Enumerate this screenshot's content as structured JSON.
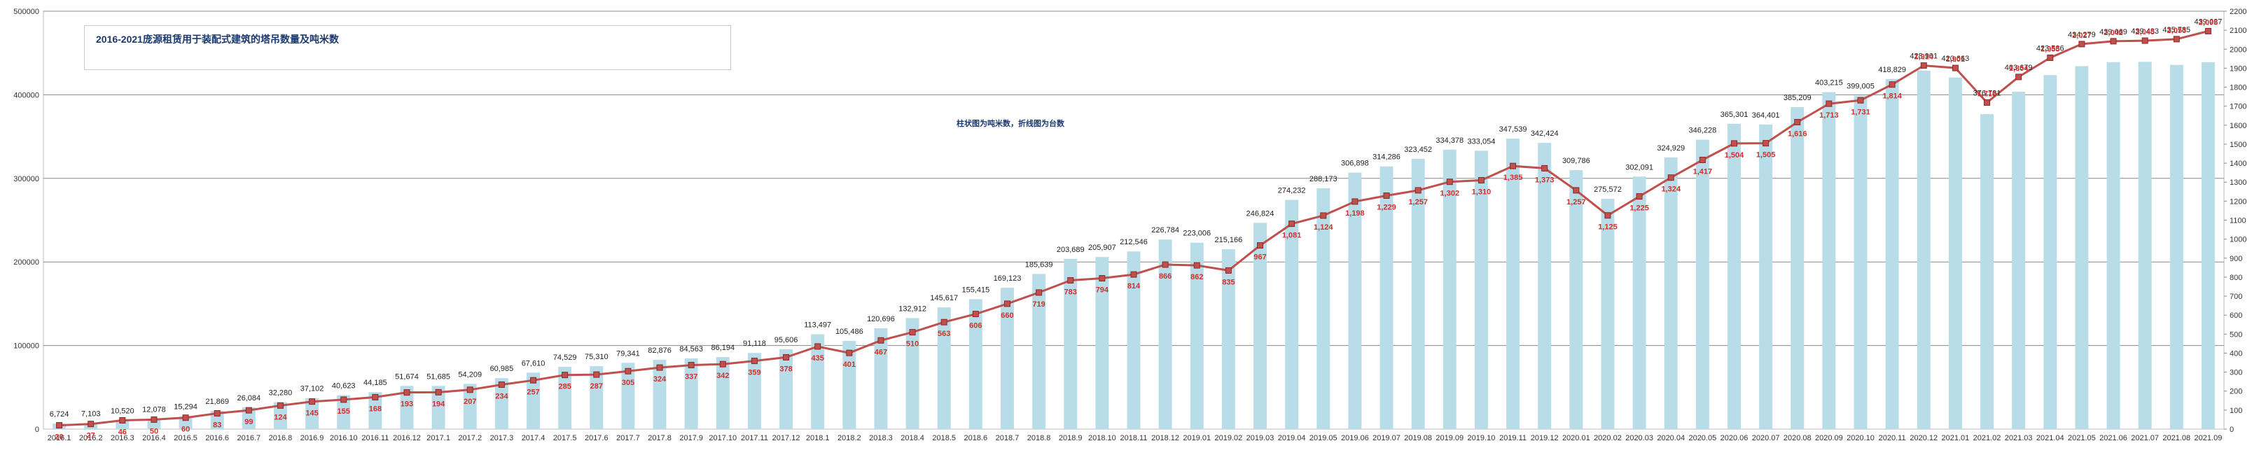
{
  "chart_data": {
    "type": "bar+line",
    "title": "2016-2021庞源租赁用于装配式建筑的塔吊数量及吨米数",
    "note": "柱状图为吨米数，折线图为台数",
    "categories": [
      "2016.1",
      "2016.2",
      "2016.3",
      "2016.4",
      "2016.5",
      "2016.6",
      "2016.7",
      "2016.8",
      "2016.9",
      "2016.10",
      "2016.11",
      "2016.12",
      "2017.1",
      "2017.2",
      "2017.3",
      "2017.4",
      "2017.5",
      "2017.6",
      "2017.7",
      "2017.8",
      "2017.9",
      "2017.10",
      "2017.11",
      "2017.12",
      "2018.1",
      "2018.2",
      "2018.3",
      "2018.4",
      "2018.5",
      "2018.6",
      "2018.7",
      "2018.8",
      "2018.9",
      "2018.10",
      "2018.11",
      "2018.12",
      "2019.01",
      "2019.02",
      "2019.03",
      "2019.04",
      "2019.05",
      "2019.06",
      "2019.07",
      "2019.08",
      "2019.09",
      "2019.10",
      "2019.11",
      "2019.12",
      "2020.01",
      "2020.02",
      "2020.03",
      "2020.04",
      "2020.05",
      "2020.06",
      "2020.07",
      "2020.08",
      "2020.09",
      "2020.10",
      "2020.11",
      "2020.12",
      "2021.01",
      "2021.02",
      "2021.03",
      "2021.04",
      "2021.05",
      "2021.06",
      "2021.07",
      "2021.08",
      "2021.09"
    ],
    "series": [
      {
        "type": "bar",
        "axis": "left",
        "values": [
          6724,
          7103,
          10520,
          12078,
          15294,
          21869,
          26084,
          32280,
          37102,
          40623,
          44185,
          51674,
          51685,
          54209,
          60985,
          67610,
          74529,
          75310,
          79341,
          82876,
          84563,
          86194,
          91118,
          95606,
          113497,
          105486,
          120696,
          132912,
          145617,
          155415,
          169123,
          185639,
          203689,
          205907,
          212546,
          226784,
          223006,
          215166,
          246824,
          274232,
          288173,
          306898,
          314286,
          323452,
          334378,
          333054,
          347539,
          342424,
          309786,
          275572,
          302091,
          324929,
          346228,
          365301,
          364401,
          385209,
          403215,
          399005,
          418829,
          428901,
          420663,
          376781,
          403679,
          423536,
          434279,
          439069,
          439433,
          435785,
          439027
        ],
        "labels": [
          "6,724",
          "7,103",
          "10,520",
          "12,078",
          "15,294",
          "21,869",
          "26,084",
          "32,280",
          "37,102",
          "40,623",
          "44,185",
          "51,674",
          "51,685",
          "54,209",
          "60,985",
          "67,610",
          "74,529",
          "75,310",
          "79,341",
          "82,876",
          "84,563",
          "86,194",
          "91,118",
          "95,606",
          "113,497",
          "105,486",
          "120,696",
          "132,912",
          "145,617",
          "155,415",
          "169,123",
          "185,639",
          "203,689",
          "205,907",
          "212,546",
          "226,784",
          "223,006",
          "215,166",
          "246,824",
          "274,232",
          "288,173",
          "306,898",
          "314,286",
          "323,452",
          "334,378",
          "333,054",
          "347,539",
          "342,424",
          "309,786",
          "275,572",
          "302,091",
          "324,929",
          "346,228",
          "365,301",
          "364,401",
          "385,209",
          "403,215",
          "399,005",
          "418,829",
          "428,901",
          "420,663",
          "376,781",
          "403,679",
          "423,536",
          "434,279",
          "439,069",
          "439,433",
          "435,785",
          "439,027"
        ]
      },
      {
        "type": "line",
        "axis": "right",
        "values": [
          20,
          27,
          46,
          50,
          60,
          83,
          99,
          124,
          145,
          155,
          168,
          193,
          194,
          207,
          234,
          257,
          285,
          287,
          305,
          324,
          337,
          342,
          359,
          378,
          435,
          401,
          467,
          510,
          563,
          606,
          660,
          719,
          783,
          794,
          814,
          866,
          862,
          835,
          967,
          1081,
          1124,
          1198,
          1229,
          1257,
          1302,
          1310,
          1385,
          1373,
          1257,
          1125,
          1225,
          1324,
          1417,
          1504,
          1505,
          1616,
          1713,
          1731,
          1814,
          1914,
          1901,
          1719,
          1854,
          1955,
          2027,
          2042,
          2045,
          2053,
          2095
        ],
        "labels": [
          "20",
          "27",
          "46",
          "50",
          "60",
          "83",
          "99",
          "124",
          "145",
          "155",
          "168",
          "193",
          "194",
          "207",
          "234",
          "257",
          "285",
          "287",
          "305",
          "324",
          "337",
          "342",
          "359",
          "378",
          "435",
          "401",
          "467",
          "510",
          "563",
          "606",
          "660",
          "719",
          "783",
          "794",
          "814",
          "866",
          "862",
          "835",
          "967",
          "1,081",
          "1,124",
          "1,198",
          "1,229",
          "1,257",
          "1,302",
          "1,310",
          "1,385",
          "1,373",
          "1,257",
          "1,125",
          "1,225",
          "1,324",
          "1,417",
          "1,504",
          "1,505",
          "1,616",
          "1,713",
          "1,731",
          "1,814",
          "1,914",
          "1,901",
          "1,719",
          "1,854",
          "1,955",
          "2,027",
          "2,042",
          "2,045",
          "2,053",
          "2,095"
        ]
      }
    ],
    "left_axis": {
      "ylim": [
        0,
        500000
      ],
      "ticks": [
        0,
        100000,
        200000,
        300000,
        400000,
        500000
      ]
    },
    "right_axis": {
      "ylim": [
        0,
        2200
      ],
      "ticks": [
        0,
        100,
        200,
        300,
        400,
        500,
        600,
        700,
        800,
        900,
        1000,
        1100,
        1200,
        1300,
        1400,
        1500,
        1600,
        1700,
        1800,
        1900,
        2000,
        2100,
        2200
      ]
    },
    "grid": true,
    "colors": {
      "bar": "#b8dde8",
      "line": "#c0504d",
      "marker": "#c0504d",
      "line_label": "#d0302a",
      "bar_label": "#222222",
      "grid": "#888888"
    }
  }
}
